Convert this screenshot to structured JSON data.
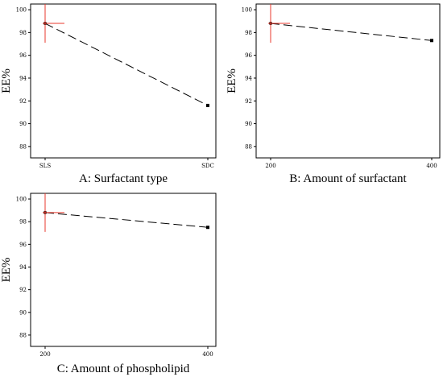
{
  "chart_data": [
    {
      "type": "line",
      "panel": "A",
      "xlabel": "A: Surfactant type",
      "ylabel": "EE%",
      "categories": [
        "SLS",
        "SDC"
      ],
      "x_ticks": [
        "SLS",
        "SDC"
      ],
      "values": [
        98.8,
        91.6
      ],
      "ylim": [
        87,
        100.5
      ],
      "y_ticks": [
        88,
        90,
        92,
        94,
        96,
        98,
        100
      ],
      "marker_at": 0,
      "grid": false
    },
    {
      "type": "line",
      "panel": "B",
      "xlabel": "B: Amount of surfactant",
      "ylabel": "EE%",
      "x": [
        200,
        400
      ],
      "x_ticks": [
        200,
        400
      ],
      "values": [
        98.8,
        97.3
      ],
      "ylim": [
        87,
        100.5
      ],
      "y_ticks": [
        88,
        90,
        92,
        94,
        96,
        98,
        100
      ],
      "marker_at": 0,
      "grid": false
    },
    {
      "type": "line",
      "panel": "C",
      "xlabel": "C: Amount of phospholipid",
      "ylabel": "EE%",
      "x": [
        200,
        400
      ],
      "x_ticks": [
        200,
        400
      ],
      "values": [
        98.8,
        97.5
      ],
      "ylim": [
        87,
        100.5
      ],
      "y_ticks": [
        88,
        90,
        92,
        94,
        96,
        98,
        100
      ],
      "marker_at": 0,
      "grid": false
    }
  ],
  "colors": {
    "line": "#000000",
    "crosshair": "#e8392c",
    "axis": "#000000"
  }
}
